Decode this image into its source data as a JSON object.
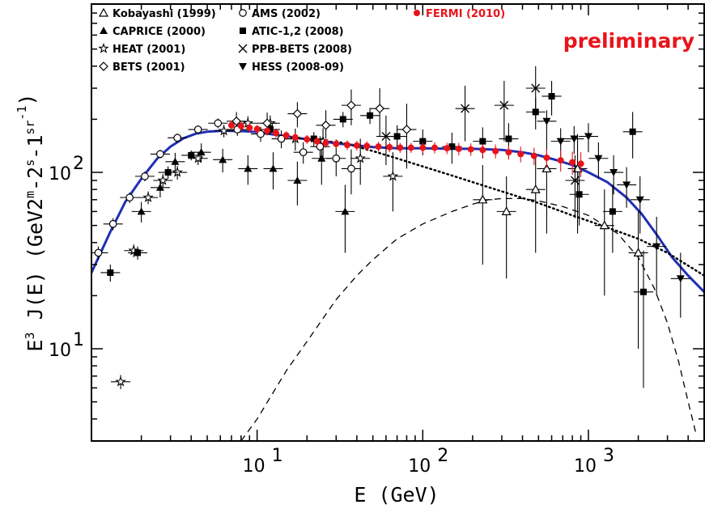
{
  "chart_data": {
    "type": "scatter",
    "xlabel": "E (GeV)",
    "ylabel_parts": [
      "E",
      "3",
      " J(E) (GeV",
      "2",
      "m",
      "-2",
      "s",
      "-1",
      "sr",
      "-1",
      ")"
    ],
    "x_scale": "log",
    "y_scale": "log",
    "xlim": [
      1.0,
      5000
    ],
    "ylim": [
      3.0,
      900
    ],
    "x_ticks": [
      {
        "v": 10,
        "base": "10",
        "exp": "1"
      },
      {
        "v": 100,
        "base": "10",
        "exp": "2"
      },
      {
        "v": 1000,
        "base": "10",
        "exp": "3"
      }
    ],
    "y_ticks": [
      {
        "v": 10,
        "base": "10",
        "exp": "1"
      },
      {
        "v": 100,
        "base": "10",
        "exp": "2"
      }
    ],
    "annotation": "preliminary",
    "legend": [
      {
        "label": "Kobayashi (1999)",
        "marker": "triangle-open"
      },
      {
        "label": "CAPRICE (2000)",
        "marker": "triangle-filled"
      },
      {
        "label": "HEAT (2001)",
        "marker": "star-open"
      },
      {
        "label": "BETS (2001)",
        "marker": "diamond-open"
      },
      {
        "label": "AMS (2002)",
        "marker": "circle-open"
      },
      {
        "label": "ATIC-1,2 (2008)",
        "marker": "square-filled"
      },
      {
        "label": "PPB-BETS (2008)",
        "marker": "cross"
      },
      {
        "label": "HESS (2008-09)",
        "marker": "triangle-down-filled"
      },
      {
        "label": "FERMI (2010)",
        "marker": "circle-red"
      }
    ],
    "series": [
      {
        "name": "Kobayashi (1999)",
        "marker": "triangle-open",
        "color": "#000000",
        "points": [
          [
            230,
            70,
            40
          ],
          [
            560,
            105,
            60
          ],
          [
            860,
            105,
            60
          ],
          [
            1250,
            50,
            30
          ],
          [
            2000,
            35,
            25
          ],
          [
            320,
            60,
            35
          ],
          [
            480,
            80,
            45
          ]
        ]
      },
      {
        "name": "CAPRICE (2000)",
        "marker": "triangle-filled",
        "color": "#000000",
        "points": [
          [
            2.0,
            60,
            8
          ],
          [
            2.6,
            82,
            10
          ],
          [
            3.2,
            115,
            14
          ],
          [
            4.6,
            130,
            16
          ],
          [
            6.2,
            118,
            18
          ],
          [
            8.8,
            105,
            20
          ],
          [
            12.5,
            105,
            25
          ],
          [
            17.5,
            90,
            25
          ],
          [
            24.5,
            120,
            35
          ],
          [
            34.0,
            60,
            25
          ]
        ]
      },
      {
        "name": "HEAT (2001)",
        "marker": "star-open",
        "color": "#000000",
        "points": [
          [
            1.5,
            6.5,
            0.6
          ],
          [
            1.8,
            36,
            3
          ],
          [
            2.2,
            72,
            6
          ],
          [
            2.7,
            90,
            8
          ],
          [
            3.3,
            100,
            9
          ],
          [
            4.4,
            120,
            10
          ],
          [
            6.3,
            172,
            14
          ],
          [
            8.8,
            190,
            18
          ],
          [
            12.0,
            190,
            20
          ],
          [
            17.0,
            155,
            22
          ],
          [
            25.0,
            150,
            28
          ],
          [
            42.0,
            120,
            35
          ],
          [
            66.0,
            95,
            35
          ]
        ]
      },
      {
        "name": "BETS (2001)",
        "marker": "diamond-open",
        "color": "#000000",
        "points": [
          [
            7.5,
            195,
            25
          ],
          [
            11.5,
            190,
            28
          ],
          [
            17.5,
            215,
            35
          ],
          [
            26.0,
            185,
            40
          ],
          [
            37.0,
            240,
            55
          ],
          [
            55.0,
            230,
            70
          ],
          [
            80.0,
            175,
            70
          ]
        ]
      },
      {
        "name": "AMS (2002)",
        "marker": "circle-open",
        "color": "#000000",
        "points": [
          [
            1.1,
            35,
            3
          ],
          [
            1.35,
            51,
            4
          ],
          [
            1.7,
            72,
            5
          ],
          [
            2.1,
            95,
            6
          ],
          [
            2.6,
            127,
            7
          ],
          [
            3.3,
            157,
            9
          ],
          [
            4.4,
            175,
            10
          ],
          [
            5.8,
            190,
            12
          ],
          [
            7.6,
            175,
            14
          ],
          [
            10.5,
            165,
            16
          ],
          [
            14.0,
            155,
            18
          ],
          [
            19.0,
            130,
            18
          ],
          [
            24.0,
            140,
            20
          ],
          [
            30.0,
            120,
            25
          ],
          [
            37.0,
            105,
            30
          ]
        ]
      },
      {
        "name": "ATIC-1,2 (2008)",
        "marker": "square-filled",
        "color": "#000000",
        "points": [
          [
            1.3,
            27,
            3
          ],
          [
            1.9,
            35,
            3
          ],
          [
            2.9,
            100,
            8
          ],
          [
            4.0,
            125,
            8
          ],
          [
            12.0,
            175,
            10
          ],
          [
            22.0,
            155,
            14
          ],
          [
            33.0,
            200,
            20
          ],
          [
            48.0,
            210,
            22
          ],
          [
            70.0,
            160,
            25
          ],
          [
            100.0,
            150,
            25
          ],
          [
            150.0,
            140,
            28
          ],
          [
            230.0,
            150,
            30
          ],
          [
            330.0,
            155,
            35
          ],
          [
            480.0,
            220,
            45
          ],
          [
            600.0,
            270,
            60
          ],
          [
            880.0,
            75,
            25
          ],
          [
            1400.0,
            60,
            25
          ],
          [
            2150.0,
            21,
            15
          ],
          [
            1850.0,
            170,
            50
          ]
        ]
      },
      {
        "name": "PPB-BETS (2008)",
        "marker": "cross",
        "color": "#000000",
        "points": [
          [
            60.0,
            160,
            50
          ],
          [
            180.0,
            230,
            80
          ],
          [
            310.0,
            240,
            90
          ],
          [
            480.0,
            300,
            100
          ],
          [
            830.0,
            90,
            35
          ]
        ]
      },
      {
        "name": "HESS (2008-09)",
        "marker": "triangle-down-filled",
        "color": "#000000",
        "points": [
          [
            560.0,
            195,
            30
          ],
          [
            680.0,
            150,
            28
          ],
          [
            820.0,
            155,
            28
          ],
          [
            1000.0,
            160,
            30
          ],
          [
            1150.0,
            120,
            28
          ],
          [
            1420.0,
            100,
            25
          ],
          [
            1700.0,
            85,
            22
          ],
          [
            2050.0,
            70,
            25
          ],
          [
            2580.0,
            38,
            18
          ],
          [
            3600.0,
            25,
            10
          ]
        ]
      },
      {
        "name": "FERMI (2010)",
        "marker": "circle-red",
        "color": "#e8141b",
        "points": [
          [
            7.0,
            185,
            12
          ],
          [
            8.0,
            183,
            11
          ],
          [
            9.0,
            179,
            11
          ],
          [
            10.0,
            176,
            10
          ],
          [
            11.5,
            172,
            10
          ],
          [
            13.0,
            167,
            10
          ],
          [
            15.0,
            162,
            9
          ],
          [
            17.0,
            158,
            9
          ],
          [
            20.0,
            154,
            9
          ],
          [
            23.0,
            150,
            9
          ],
          [
            26.0,
            147,
            9
          ],
          [
            30.0,
            145,
            9
          ],
          [
            35.0,
            143,
            9
          ],
          [
            40.0,
            142,
            9
          ],
          [
            46.0,
            141,
            9
          ],
          [
            54.0,
            140,
            9
          ],
          [
            63.0,
            139,
            9
          ],
          [
            73.0,
            138,
            9
          ],
          [
            85.0,
            138,
            9
          ],
          [
            100.0,
            138,
            10
          ],
          [
            118.0,
            138,
            10
          ],
          [
            140.0,
            137,
            10
          ],
          [
            165.0,
            136,
            11
          ],
          [
            195.0,
            135,
            11
          ],
          [
            230.0,
            134,
            11
          ],
          [
            275.0,
            132,
            12
          ],
          [
            330.0,
            130,
            12
          ],
          [
            390.0,
            127,
            13
          ],
          [
            470.0,
            124,
            14
          ],
          [
            560.0,
            121,
            15
          ],
          [
            680.0,
            117,
            16
          ],
          [
            800.0,
            114,
            17
          ],
          [
            900.0,
            112,
            18
          ]
        ]
      }
    ],
    "curves": [
      {
        "name": "",
        "style": "solid",
        "color": "#1f2fb5",
        "points": [
          [
            1.0,
            27
          ],
          [
            1.3,
            46
          ],
          [
            1.6,
            68
          ],
          [
            2.0,
            92
          ],
          [
            2.5,
            120
          ],
          [
            3.0,
            140
          ],
          [
            3.6,
            156
          ],
          [
            4.3,
            166
          ],
          [
            5.0,
            170
          ],
          [
            6.0,
            172
          ],
          [
            7.0,
            172
          ],
          [
            8.5,
            171
          ],
          [
            10,
            169
          ],
          [
            12,
            165
          ],
          [
            15,
            160
          ],
          [
            20,
            154
          ],
          [
            25,
            150
          ],
          [
            30,
            146
          ],
          [
            40,
            142
          ],
          [
            50,
            139
          ],
          [
            70,
            137
          ],
          [
            100,
            137
          ],
          [
            150,
            136
          ],
          [
            200,
            136
          ],
          [
            300,
            134
          ],
          [
            400,
            130
          ],
          [
            500,
            125
          ],
          [
            650,
            117
          ],
          [
            800,
            110
          ],
          [
            1000,
            100
          ],
          [
            1300,
            88
          ],
          [
            1700,
            72
          ],
          [
            2100,
            58
          ],
          [
            2600,
            44
          ],
          [
            3200,
            33
          ],
          [
            4000,
            26
          ],
          [
            5000,
            21
          ]
        ]
      },
      {
        "name": "",
        "style": "dotted",
        "color": "#000000",
        "points": [
          [
            30,
            150
          ],
          [
            40,
            140
          ],
          [
            50,
            132
          ],
          [
            70,
            120
          ],
          [
            100,
            108
          ],
          [
            150,
            96
          ],
          [
            200,
            88
          ],
          [
            300,
            78
          ],
          [
            500,
            67
          ],
          [
            800,
            57
          ],
          [
            1200,
            50
          ],
          [
            2000,
            42
          ],
          [
            3000,
            35
          ],
          [
            5000,
            26
          ]
        ]
      },
      {
        "name": "",
        "style": "dashed",
        "color": "#000000",
        "points": [
          [
            8,
            3.0
          ],
          [
            10,
            4.0
          ],
          [
            15,
            7.5
          ],
          [
            20,
            11
          ],
          [
            30,
            19
          ],
          [
            40,
            26
          ],
          [
            50,
            32
          ],
          [
            70,
            42
          ],
          [
            100,
            51
          ],
          [
            150,
            60
          ],
          [
            200,
            66
          ],
          [
            250,
            70
          ],
          [
            300,
            71
          ],
          [
            400,
            71
          ],
          [
            500,
            69
          ],
          [
            700,
            64
          ],
          [
            1000,
            57
          ],
          [
            1500,
            45
          ],
          [
            2000,
            33
          ],
          [
            2500,
            22
          ],
          [
            3000,
            14
          ],
          [
            3500,
            8.5
          ],
          [
            4000,
            5
          ],
          [
            4500,
            3.2
          ]
        ]
      }
    ],
    "grid": false,
    "legend_placement": "top-left"
  }
}
